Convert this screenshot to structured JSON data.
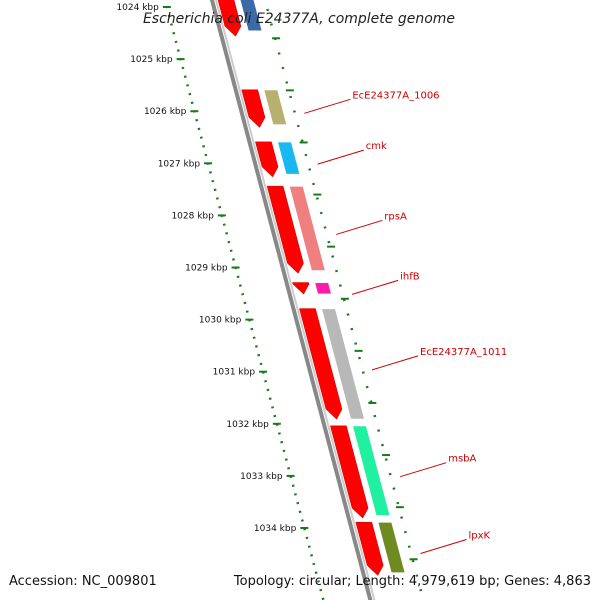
{
  "title": "Escherichia coli E24377A, complete genome",
  "footer": {
    "accession": "Accession: NC_009801",
    "summary": "Topology: circular; Length: 4,979,619 bp; Genes: 4,863"
  },
  "ticks": [
    {
      "kb": 1024,
      "label": "1024 kbp"
    },
    {
      "kb": 1025,
      "label": "1025 kbp"
    },
    {
      "kb": 1026,
      "label": "1026 kbp"
    },
    {
      "kb": 1027,
      "label": "1027 kbp"
    },
    {
      "kb": 1028,
      "label": "1028 kbp"
    },
    {
      "kb": 1029,
      "label": "1029 kbp"
    },
    {
      "kb": 1030,
      "label": "1030 kbp"
    },
    {
      "kb": 1031,
      "label": "1031 kbp"
    },
    {
      "kb": 1032,
      "label": "1032 kbp"
    },
    {
      "kb": 1033,
      "label": "1033 kbp"
    },
    {
      "kb": 1034,
      "label": "1034 kbp"
    }
  ],
  "genes": [
    {
      "name": "",
      "start": 1023.3,
      "end": 1024.5,
      "color": "#3a6aa8"
    },
    {
      "name": "EcE24377A_1006",
      "start": 1025.55,
      "end": 1026.3,
      "color": "#b8b070"
    },
    {
      "name": "cmk",
      "start": 1026.55,
      "end": 1027.25,
      "color": "#1ab8f0"
    },
    {
      "name": "rpsA",
      "start": 1027.4,
      "end": 1029.1,
      "color": "#f08080"
    },
    {
      "name": "ihfB",
      "start": 1029.25,
      "end": 1029.55,
      "color": "#ff1ca8"
    },
    {
      "name": "EcE24377A_1011",
      "start": 1029.75,
      "end": 1031.95,
      "color": "#b8b8b8"
    },
    {
      "name": "msbA",
      "start": 1032.0,
      "end": 1033.8,
      "color": "#20f0a0"
    },
    {
      "name": "lpxK",
      "start": 1033.85,
      "end": 1034.9,
      "color": "#6e8a20"
    }
  ],
  "cds": [
    {
      "start": 1023.3,
      "end": 1024.6
    },
    {
      "start": 1025.55,
      "end": 1026.35
    },
    {
      "start": 1026.55,
      "end": 1027.3
    },
    {
      "start": 1027.4,
      "end": 1029.15
    },
    {
      "start": 1029.25,
      "end": 1029.55
    },
    {
      "start": 1029.75,
      "end": 1031.95
    },
    {
      "start": 1032.0,
      "end": 1033.85
    },
    {
      "start": 1033.85,
      "end": 1034.95
    }
  ],
  "colors": {
    "cds": "#ff0000",
    "backbone": "#888888",
    "ticks": "#1a7a1a",
    "labels": "#cc0000"
  }
}
